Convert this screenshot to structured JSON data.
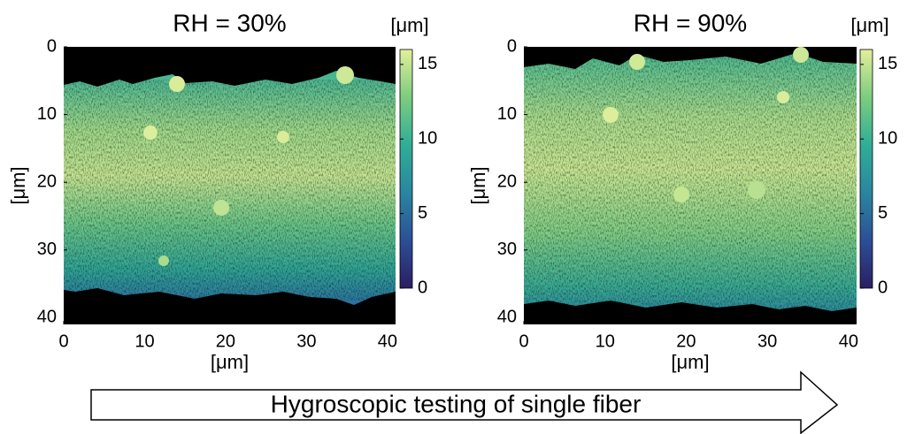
{
  "chart_data": [
    {
      "type": "image",
      "title": "RH = 30%",
      "xlabel": "[μm]",
      "ylabel": "[μm]",
      "xlim": [
        0,
        41
      ],
      "xticks": [
        0,
        10,
        20,
        30,
        40
      ],
      "ylim": [
        0,
        41
      ],
      "yticks": [
        0,
        10,
        20,
        30,
        40
      ],
      "y_reversed": true,
      "colorbar": {
        "label": "[μm]",
        "lim": [
          0,
          16
        ],
        "ticks": [
          0,
          5,
          10,
          15
        ],
        "colormap": [
          "#2a1e63",
          "#2c4f96",
          "#2a86a0",
          "#2fae95",
          "#7ccd7f",
          "#e3ef9b"
        ]
      }
    },
    {
      "type": "image",
      "title": "RH = 90%",
      "xlabel": "[μm]",
      "ylabel": "[μm]",
      "xlim": [
        0,
        41
      ],
      "xticks": [
        0,
        10,
        20,
        30,
        40
      ],
      "ylim": [
        0,
        41
      ],
      "yticks": [
        0,
        10,
        20,
        30,
        40
      ],
      "y_reversed": true,
      "colorbar": {
        "label": "[μm]",
        "lim": [
          0,
          16
        ],
        "ticks": [
          0,
          5,
          10,
          15
        ],
        "colormap": [
          "#2a1e63",
          "#2c4f96",
          "#2a86a0",
          "#2fae95",
          "#7ccd7f",
          "#e3ef9b"
        ]
      }
    }
  ],
  "annotation": "Hygroscopic testing of single fiber"
}
